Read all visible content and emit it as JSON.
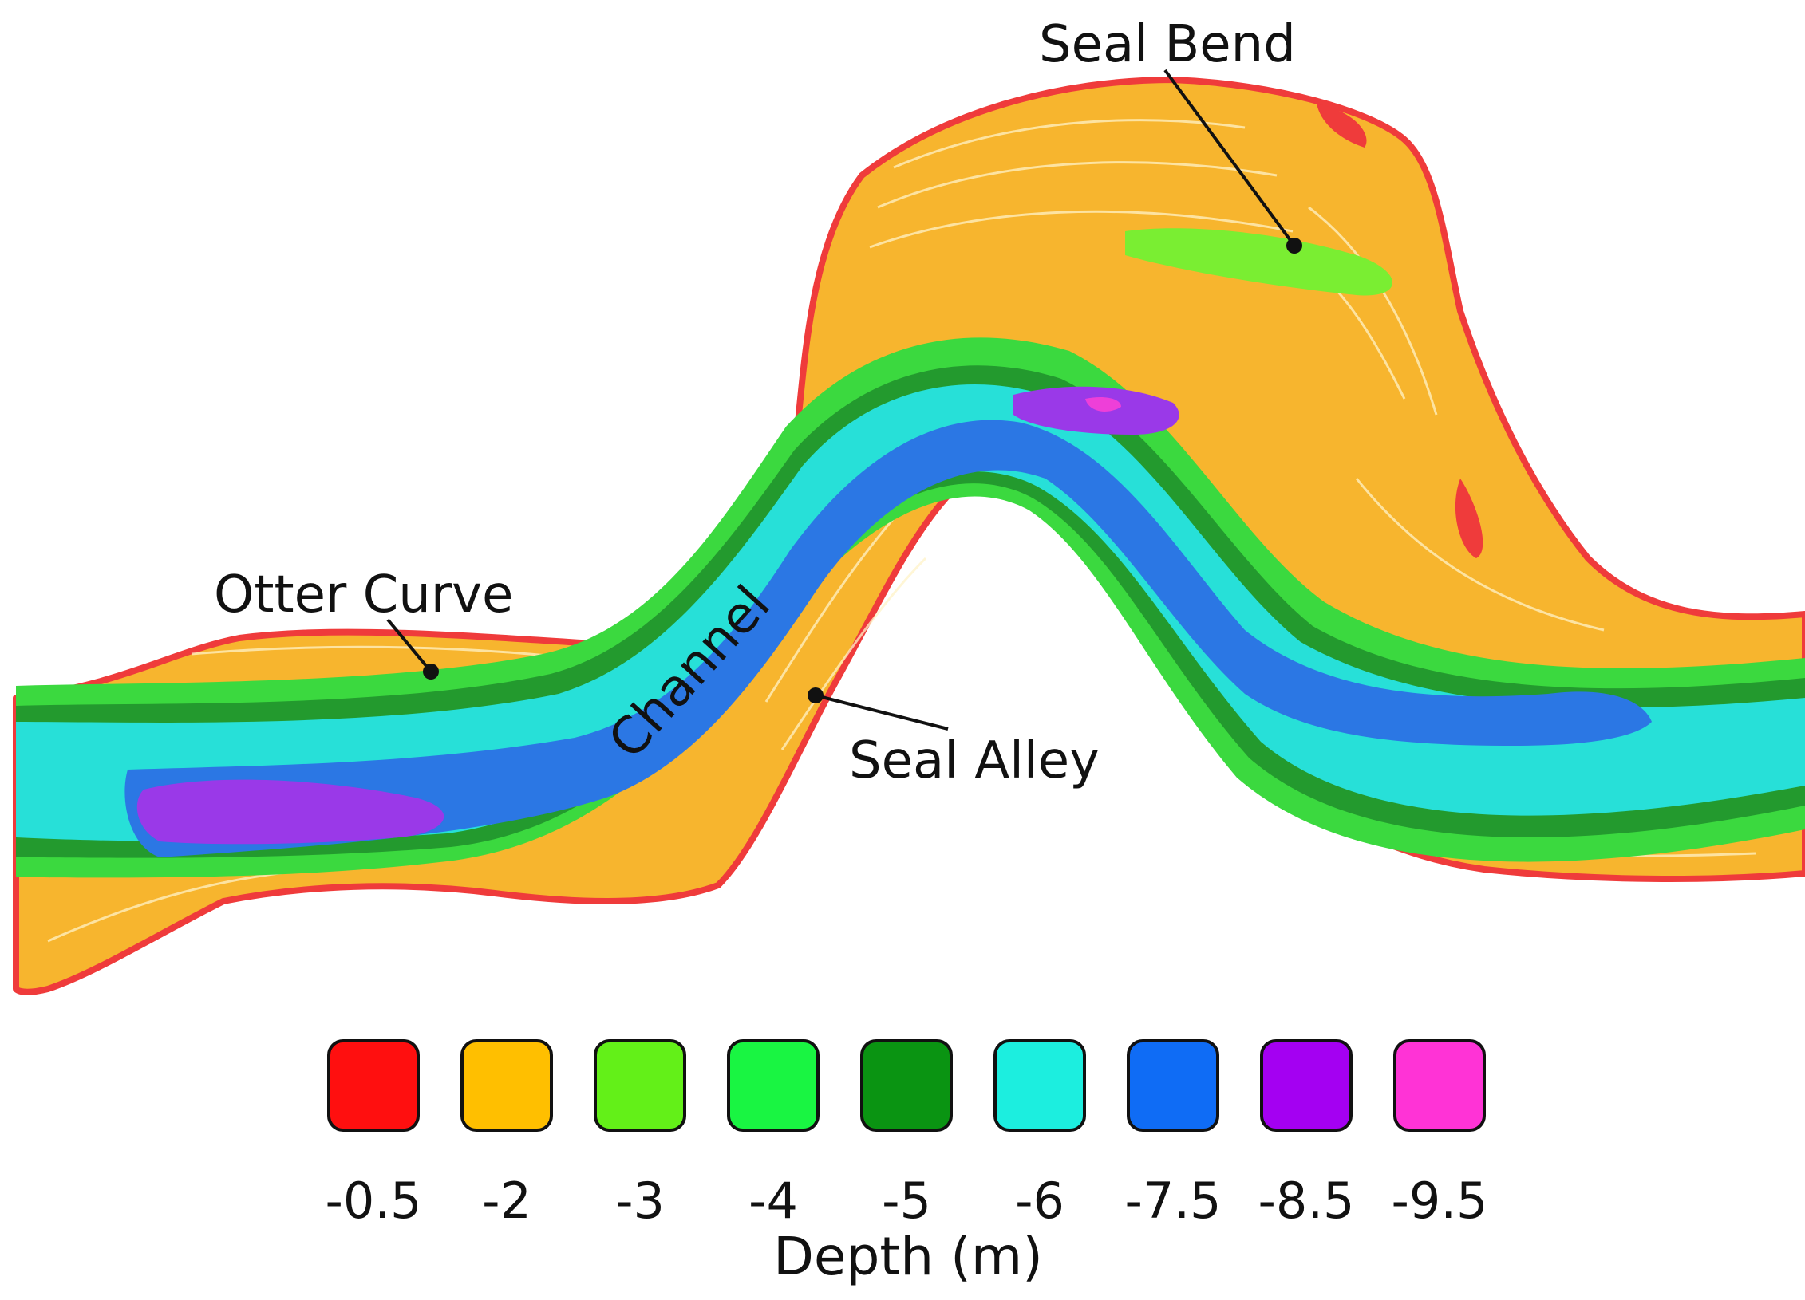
{
  "map": {
    "labels": {
      "seal_bend": "Seal Bend",
      "otter_curve": "Otter Curve",
      "channel": "Channel",
      "seal_alley": "Seal Alley"
    }
  },
  "legend": {
    "title": "Depth (m)",
    "items": [
      {
        "value": "-0.5",
        "color": "#ff0f0f"
      },
      {
        "value": "-2",
        "color": "#ffbf00"
      },
      {
        "value": "-3",
        "color": "#63f018"
      },
      {
        "value": "-4",
        "color": "#19f542"
      },
      {
        "value": "-5",
        "color": "#0a9412"
      },
      {
        "value": "-6",
        "color": "#1ceedf"
      },
      {
        "value": "-7.5",
        "color": "#0f6cf5"
      },
      {
        "value": "-8.5",
        "color": "#a400f2"
      },
      {
        "value": "-9.5",
        "color": "#ff33d6"
      }
    ]
  },
  "colors": {
    "shore_outline": "#ef3b3b",
    "shallow": "#f7b52e",
    "light_green": "#7aee32",
    "green": "#3bd93f",
    "dark_green": "#239a2e",
    "cyan": "#27e0d8",
    "blue": "#2b77e4",
    "purple": "#9a39e8",
    "magenta": "#ee3fd8"
  }
}
